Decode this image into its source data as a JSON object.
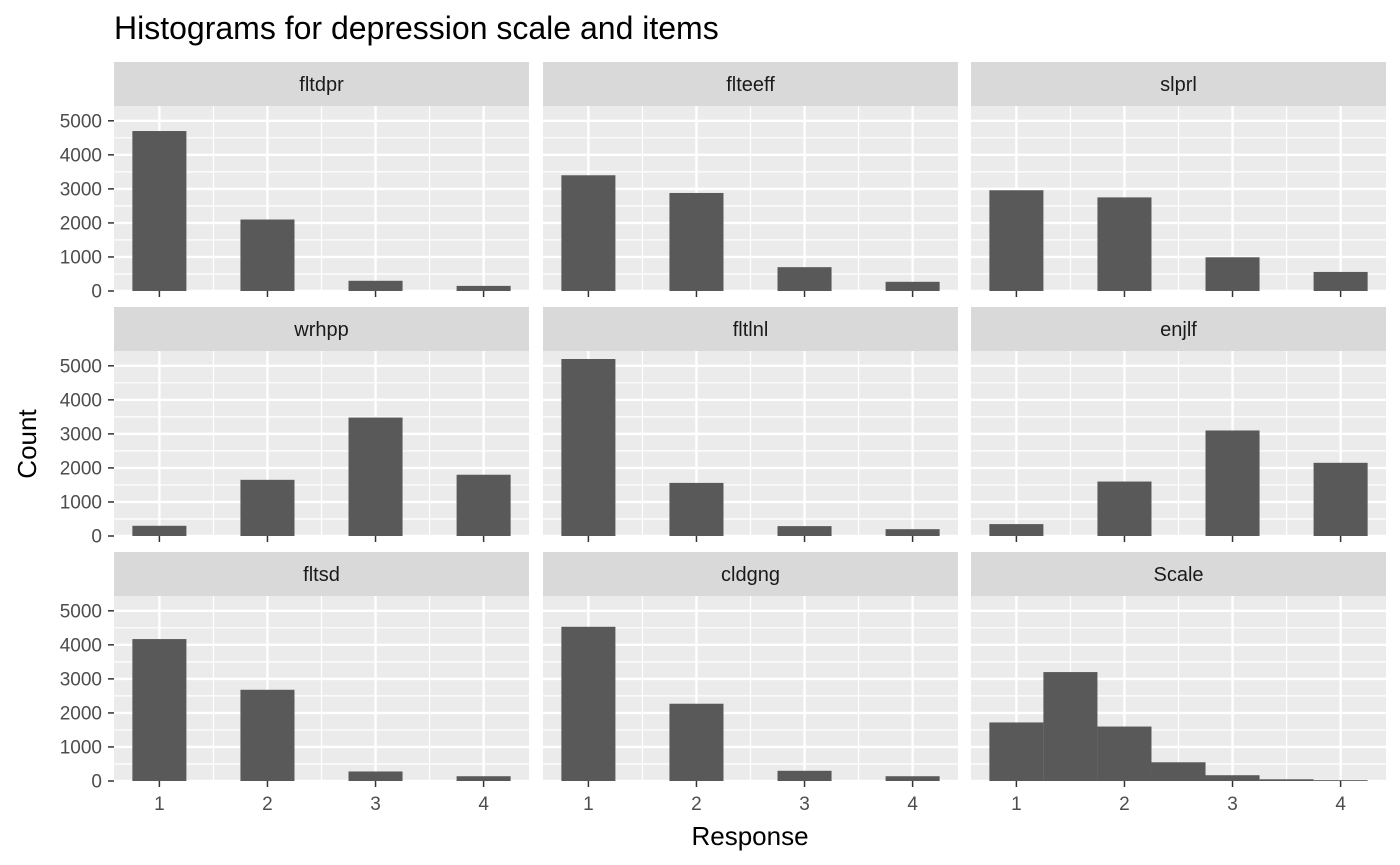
{
  "chart_data": {
    "type": "bar",
    "title": "Histograms for depression scale and items",
    "xlabel": "Response",
    "ylabel": "Count",
    "x_ticks": [
      "1",
      "2",
      "3",
      "4"
    ],
    "y_ticks": [
      "0",
      "1000",
      "2000",
      "3000",
      "4000",
      "5000"
    ],
    "xlim": [
      0.58,
      4.42
    ],
    "ylim": [
      0,
      5200
    ],
    "colors": {
      "bar": "#595959",
      "panel": "#EBEBEB",
      "strip": "#D9D9D9",
      "grid": "#FFFFFF"
    },
    "panels": [
      {
        "name": "fltdpr",
        "categories": [
          1,
          2,
          3,
          4
        ],
        "values": [
          4700,
          2100,
          300,
          150
        ]
      },
      {
        "name": "flteeff",
        "categories": [
          1,
          2,
          3,
          4
        ],
        "values": [
          3400,
          2880,
          700,
          270
        ]
      },
      {
        "name": "slprl",
        "categories": [
          1,
          2,
          3,
          4
        ],
        "values": [
          2960,
          2750,
          990,
          560
        ]
      },
      {
        "name": "wrhpp",
        "categories": [
          1,
          2,
          3,
          4
        ],
        "values": [
          300,
          1650,
          3480,
          1800
        ]
      },
      {
        "name": "fltlnl",
        "categories": [
          1,
          2,
          3,
          4
        ],
        "values": [
          5200,
          1560,
          290,
          200
        ]
      },
      {
        "name": "enjlf",
        "categories": [
          1,
          2,
          3,
          4
        ],
        "values": [
          350,
          1600,
          3100,
          2150
        ]
      },
      {
        "name": "fltsd",
        "categories": [
          1,
          2,
          3,
          4
        ],
        "values": [
          4170,
          2680,
          280,
          140
        ]
      },
      {
        "name": "cldgng",
        "categories": [
          1,
          2,
          3,
          4
        ],
        "values": [
          4530,
          2270,
          300,
          140
        ]
      },
      {
        "name": "Scale",
        "categories": [
          1,
          1.5,
          2,
          2.5,
          3,
          3.5,
          4
        ],
        "values": [
          1720,
          3200,
          1600,
          550,
          170,
          50,
          25
        ],
        "bin_width": 0.5
      }
    ]
  }
}
